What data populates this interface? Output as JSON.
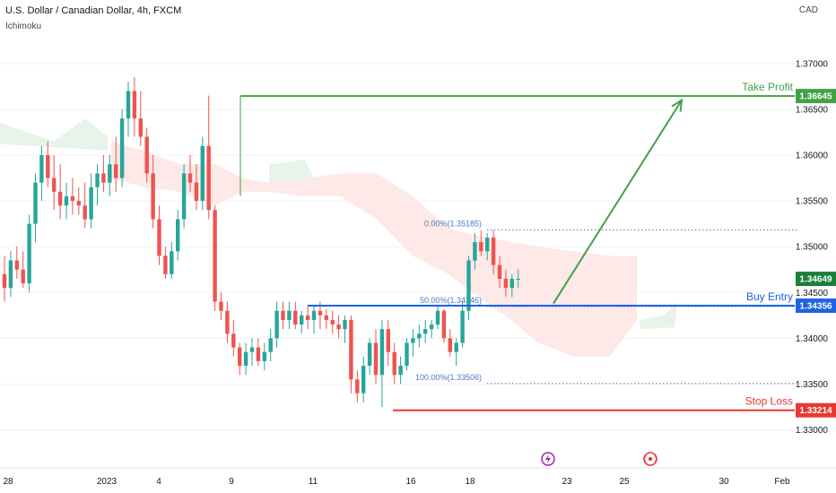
{
  "header": {
    "symbol": "U.S. Dollar / Canadian Dollar, 4h, FXCM",
    "indicator": "Ichimoku",
    "currency": "CAD"
  },
  "colors": {
    "up": "#26a69a",
    "down": "#ef5350",
    "green_line": "#43a047",
    "red_line": "#e53935",
    "blue_line": "#1e63e0",
    "price_badge": "#1b7f3b",
    "fib": "#4b79c4",
    "cloud_red": "#fde5e3",
    "cloud_green": "#e5f2e8",
    "grid": "#f0f3fa",
    "axis_text": "#131722"
  },
  "chart_data": {
    "type": "candlestick",
    "ylim": [
      1.328,
      1.374
    ],
    "y_ticks": [
      "1.37000",
      "1.36500",
      "1.36000",
      "1.35500",
      "1.35000",
      "1.34500",
      "1.34000",
      "1.33500",
      "1.33000"
    ],
    "y_tick_values": [
      1.37,
      1.365,
      1.36,
      1.355,
      1.35,
      1.345,
      1.34,
      1.335,
      1.33
    ],
    "x_ticks": [
      "28",
      "2023",
      "4",
      "9",
      "11",
      "16",
      "18",
      "23",
      "25",
      "30",
      "Feb"
    ],
    "candles": [
      [
        1.347,
        1.349,
        1.344,
        1.3455
      ],
      [
        1.3455,
        1.3495,
        1.3445,
        1.3485
      ],
      [
        1.3485,
        1.35,
        1.3465,
        1.3475
      ],
      [
        1.3475,
        1.3495,
        1.3455,
        1.346
      ],
      [
        1.346,
        1.3535,
        1.345,
        1.3525
      ],
      [
        1.3525,
        1.358,
        1.3505,
        1.357
      ],
      [
        1.357,
        1.361,
        1.355,
        1.36
      ],
      [
        1.36,
        1.3615,
        1.3565,
        1.3575
      ],
      [
        1.3575,
        1.36,
        1.354,
        1.356
      ],
      [
        1.356,
        1.359,
        1.353,
        1.3545
      ],
      [
        1.3545,
        1.357,
        1.353,
        1.3555
      ],
      [
        1.3555,
        1.3575,
        1.3535,
        1.355
      ],
      [
        1.355,
        1.3565,
        1.3535,
        1.3545
      ],
      [
        1.3545,
        1.357,
        1.352,
        1.353
      ],
      [
        1.353,
        1.358,
        1.352,
        1.3565
      ],
      [
        1.3565,
        1.359,
        1.3545,
        1.358
      ],
      [
        1.358,
        1.36,
        1.356,
        1.357
      ],
      [
        1.357,
        1.36,
        1.3555,
        1.359
      ],
      [
        1.359,
        1.362,
        1.356,
        1.3575
      ],
      [
        1.3575,
        1.365,
        1.3565,
        1.364
      ],
      [
        1.364,
        1.368,
        1.362,
        1.367
      ],
      [
        1.367,
        1.3685,
        1.362,
        1.364
      ],
      [
        1.364,
        1.367,
        1.361,
        1.362
      ],
      [
        1.362,
        1.363,
        1.357,
        1.358
      ],
      [
        1.358,
        1.36,
        1.352,
        1.353
      ],
      [
        1.353,
        1.3545,
        1.348,
        1.349
      ],
      [
        1.349,
        1.35,
        1.3465,
        1.347
      ],
      [
        1.347,
        1.3505,
        1.3465,
        1.3495
      ],
      [
        1.3495,
        1.354,
        1.3485,
        1.353
      ],
      [
        1.353,
        1.359,
        1.352,
        1.358
      ],
      [
        1.358,
        1.36,
        1.356,
        1.357
      ],
      [
        1.357,
        1.359,
        1.354,
        1.355
      ],
      [
        1.355,
        1.362,
        1.354,
        1.361
      ],
      [
        1.361,
        1.3665,
        1.353,
        1.354
      ],
      [
        1.354,
        1.3545,
        1.343,
        1.344
      ],
      [
        1.344,
        1.345,
        1.342,
        1.343
      ],
      [
        1.343,
        1.344,
        1.3395,
        1.3405
      ],
      [
        1.3405,
        1.342,
        1.338,
        1.339
      ],
      [
        1.339,
        1.3395,
        1.336,
        1.337
      ],
      [
        1.337,
        1.3395,
        1.336,
        1.3385
      ],
      [
        1.3385,
        1.34,
        1.337,
        1.339
      ],
      [
        1.339,
        1.34,
        1.337,
        1.3375
      ],
      [
        1.3375,
        1.3395,
        1.3365,
        1.3385
      ],
      [
        1.3385,
        1.341,
        1.3375,
        1.34
      ],
      [
        1.34,
        1.344,
        1.339,
        1.343
      ],
      [
        1.343,
        1.344,
        1.341,
        1.342
      ],
      [
        1.342,
        1.344,
        1.341,
        1.343
      ],
      [
        1.343,
        1.344,
        1.341,
        1.3415
      ],
      [
        1.3415,
        1.343,
        1.3405,
        1.3425
      ],
      [
        1.3425,
        1.3435,
        1.341,
        1.342
      ],
      [
        1.342,
        1.3435,
        1.3405,
        1.343
      ],
      [
        1.343,
        1.344,
        1.341,
        1.3425
      ],
      [
        1.3425,
        1.3432,
        1.341,
        1.342
      ],
      [
        1.342,
        1.343,
        1.3405,
        1.3415
      ],
      [
        1.3415,
        1.3425,
        1.34,
        1.341
      ],
      [
        1.341,
        1.3425,
        1.3395,
        1.342
      ],
      [
        1.342,
        1.3425,
        1.334,
        1.3355
      ],
      [
        1.3355,
        1.3365,
        1.333,
        1.334
      ],
      [
        1.334,
        1.338,
        1.333,
        1.337
      ],
      [
        1.337,
        1.34,
        1.336,
        1.3395
      ],
      [
        1.3395,
        1.341,
        1.335,
        1.336
      ],
      [
        1.336,
        1.342,
        1.3325,
        1.341
      ],
      [
        1.341,
        1.342,
        1.337,
        1.3385
      ],
      [
        1.3385,
        1.3395,
        1.335,
        1.336
      ],
      [
        1.336,
        1.338,
        1.335,
        1.337
      ],
      [
        1.337,
        1.34,
        1.3365,
        1.3395
      ],
      [
        1.3395,
        1.341,
        1.338,
        1.34
      ],
      [
        1.34,
        1.3415,
        1.339,
        1.3405
      ],
      [
        1.3405,
        1.342,
        1.3395,
        1.341
      ],
      [
        1.341,
        1.342,
        1.34,
        1.3415
      ],
      [
        1.3415,
        1.3435,
        1.341,
        1.343
      ],
      [
        1.343,
        1.3432,
        1.3395,
        1.34
      ],
      [
        1.34,
        1.341,
        1.338,
        1.3385
      ],
      [
        1.3385,
        1.34,
        1.337,
        1.3395
      ],
      [
        1.3395,
        1.344,
        1.339,
        1.343
      ],
      [
        1.343,
        1.349,
        1.342,
        1.3485
      ],
      [
        1.3485,
        1.3515,
        1.3475,
        1.3505
      ],
      [
        1.3505,
        1.3518,
        1.349,
        1.3495
      ],
      [
        1.3495,
        1.3515,
        1.3485,
        1.351
      ],
      [
        1.351,
        1.3518,
        1.347,
        1.348
      ],
      [
        1.348,
        1.349,
        1.3455,
        1.3465
      ],
      [
        1.3465,
        1.3475,
        1.3445,
        1.3455
      ],
      [
        1.3455,
        1.347,
        1.3445,
        1.3465
      ],
      [
        1.3465,
        1.3475,
        1.3455,
        1.3465
      ]
    ],
    "levels": [
      {
        "label": "Take Profit",
        "price_label": "1.36645",
        "value": 1.36645,
        "role": "take-profit"
      },
      {
        "label": "Buy Entry",
        "price_label": "1.34356",
        "value": 1.34356,
        "role": "buy-entry"
      },
      {
        "label": "Stop Loss",
        "price_label": "1.33214",
        "value": 1.33214,
        "role": "stop-loss"
      }
    ],
    "current_price": {
      "price_label": "1.34649",
      "value": 1.34649
    },
    "fibonacci": [
      {
        "label": "0.00%(1.35185)",
        "value": 1.35185
      },
      {
        "label": "50.00%(1.34346)",
        "value": 1.34346
      },
      {
        "label": "100.00%(1.33506)",
        "value": 1.33506
      }
    ],
    "arrow": {
      "from": 1.3438,
      "to": 1.366
    }
  }
}
